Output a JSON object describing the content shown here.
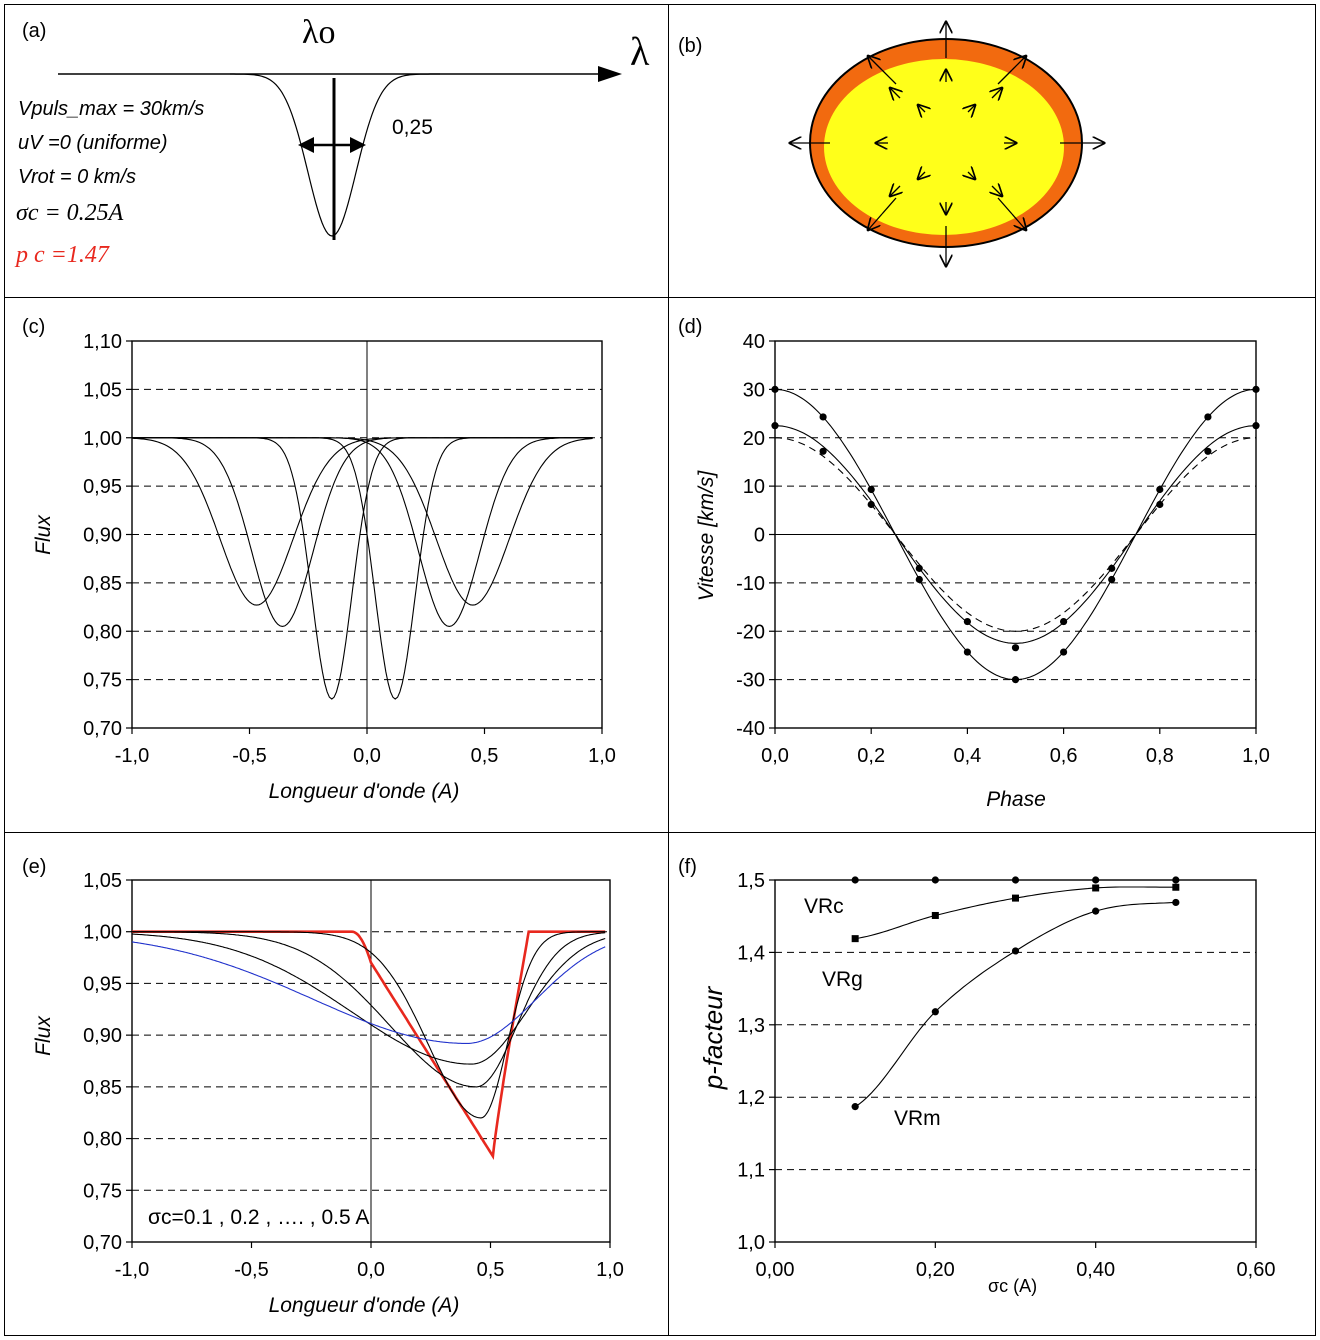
{
  "panels": {
    "a": {
      "label": "(a)",
      "lambda0": "λo",
      "lambda": "λ",
      "params": [
        "Vpuls_max = 30km/s",
        "uV =0  (uniforme)",
        "Vrot = 0 km/s"
      ],
      "sigma_text": "σc = 0.25A",
      "p_text": "p c =1.47",
      "width_label": "0,25"
    },
    "b": {
      "label": "(b)"
    },
    "c": {
      "label": "(c)"
    },
    "d": {
      "label": "(d)"
    },
    "e": {
      "label": "(e)",
      "annotation": "σc=0.1 , 0.2 , …. , 0.5 A"
    },
    "f": {
      "label": "(f)",
      "xlabel": "σc (A)"
    }
  },
  "colors": {
    "accent_red": "#e8281e",
    "blue_curve": "#2233cc",
    "star_yellow": "#ffff1a",
    "star_orange": "#f26a0f"
  },
  "chart_data": [
    {
      "id": "c",
      "type": "line",
      "xlabel": "Longueur d'onde (A)",
      "ylabel": "Flux",
      "xlim": [
        -1.0,
        1.0
      ],
      "ylim": [
        0.7,
        1.1
      ],
      "xticks": [
        "-1,0",
        "-0,5",
        "0,0",
        "0,5",
        "1,0"
      ],
      "yticks": [
        "0,70",
        "0,75",
        "0,80",
        "0,85",
        "0,90",
        "0,95",
        "1,00",
        "1,05",
        "1,10"
      ],
      "grid": "dashed horizontal",
      "series": [
        {
          "depth": 0.27,
          "center": -0.15,
          "sigma": 0.085
        },
        {
          "depth": 0.27,
          "center": 0.12,
          "sigma": 0.085
        },
        {
          "depth": 0.195,
          "center": -0.36,
          "sigma": 0.13
        },
        {
          "depth": 0.195,
          "center": 0.35,
          "sigma": 0.13
        },
        {
          "depth": 0.173,
          "center": -0.47,
          "sigma": 0.155
        },
        {
          "depth": 0.173,
          "center": 0.45,
          "sigma": 0.155
        }
      ]
    },
    {
      "id": "d",
      "type": "line",
      "xlabel": "Phase",
      "ylabel": "Vitesse [km/s]",
      "xlim": [
        0.0,
        1.0
      ],
      "ylim": [
        -40,
        40
      ],
      "xticks": [
        "0,0",
        "0,2",
        "0,4",
        "0,6",
        "0,8",
        "1,0"
      ],
      "yticks": [
        "-40",
        "-30",
        "-20",
        "-10",
        "0",
        "10",
        "20",
        "30",
        "40"
      ],
      "grid": "dashed horizontal",
      "x": [
        0.0,
        0.1,
        0.2,
        0.3,
        0.4,
        0.5,
        0.6,
        0.7,
        0.8,
        0.9,
        1.0
      ],
      "series": [
        {
          "values": [
            30.0,
            24.3,
            9.3,
            -9.3,
            -24.3,
            -30.0,
            -24.3,
            -9.3,
            9.3,
            24.3,
            30.0
          ],
          "markers": true
        },
        {
          "values": [
            22.5,
            17.2,
            6.2,
            -7.0,
            -18.0,
            -23.4,
            -18.0,
            -7.0,
            6.2,
            17.2,
            22.5
          ],
          "markers": true
        },
        {
          "values": [
            20.0,
            16.2,
            6.2,
            -6.2,
            -16.2,
            -20.0,
            -16.2,
            -6.2,
            6.2,
            16.2,
            20.0
          ],
          "dashed": true
        }
      ]
    },
    {
      "id": "e",
      "type": "line",
      "xlabel": "Longueur d'onde (A)",
      "ylabel": "Flux",
      "xlim": [
        -1.0,
        1.0
      ],
      "ylim": [
        0.7,
        1.05
      ],
      "xticks": [
        "-1,0",
        "-0,5",
        "0,0",
        "0,5",
        "1,0"
      ],
      "yticks": [
        "0,70",
        "0,75",
        "0,80",
        "0,85",
        "0,90",
        "0,95",
        "1,00",
        "1,05"
      ],
      "grid": "dashed horizontal",
      "series": [
        {
          "sigma_c": 0.1,
          "min_x": 0.51,
          "min_y": 0.783,
          "color": "red"
        },
        {
          "sigma_c": 0.2,
          "min_x": 0.46,
          "min_y": 0.82,
          "color": "black"
        },
        {
          "sigma_c": 0.3,
          "min_x": 0.44,
          "min_y": 0.85,
          "color": "black"
        },
        {
          "sigma_c": 0.4,
          "min_x": 0.42,
          "min_y": 0.872,
          "color": "black"
        },
        {
          "sigma_c": 0.5,
          "min_x": 0.4,
          "min_y": 0.892,
          "color": "blue"
        }
      ]
    },
    {
      "id": "f",
      "type": "line",
      "xlabel": "σc (A)",
      "ylabel": "p-facteur",
      "xlim": [
        0.0,
        0.6
      ],
      "ylim": [
        1.0,
        1.5
      ],
      "xticks": [
        "0,00",
        "0,20",
        "0,40",
        "0,60"
      ],
      "yticks": [
        "1,0",
        "1,1",
        "1,2",
        "1,3",
        "1,4",
        "1,5"
      ],
      "grid": "dashed horizontal",
      "x": [
        0.1,
        0.2,
        0.3,
        0.4,
        0.5
      ],
      "series": [
        {
          "name": "VRc",
          "values": [
            1.5,
            1.5,
            1.5,
            1.5,
            1.5
          ],
          "marker": "circle"
        },
        {
          "name": "VRg",
          "values": [
            1.419,
            1.451,
            1.475,
            1.489,
            1.49
          ],
          "marker": "square"
        },
        {
          "name": "VRm",
          "values": [
            1.187,
            1.318,
            1.402,
            1.457,
            1.469
          ],
          "marker": "circle"
        }
      ]
    }
  ]
}
